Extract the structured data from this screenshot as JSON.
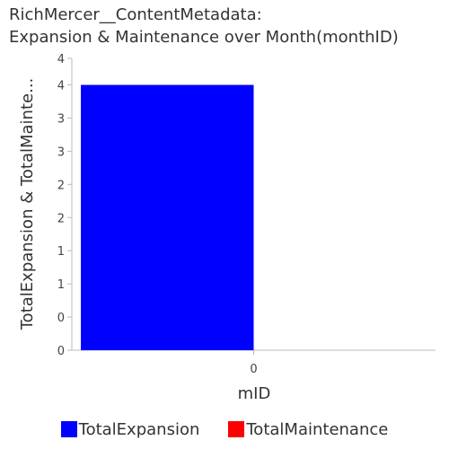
{
  "chart_data": {
    "type": "bar",
    "title_line1": "RichMercer__ContentMetadata:",
    "title_line2": "Expansion & Maintenance over Month(monthID)",
    "xlabel": "mID",
    "ylabel": "TotalExpansion & TotalMainte...",
    "categories": [
      "0"
    ],
    "series": [
      {
        "name": "TotalExpansion",
        "values": [
          4
        ],
        "color": "#0000ff"
      },
      {
        "name": "TotalMaintenance",
        "values": [
          0
        ],
        "color": "#ff0000"
      }
    ],
    "ylim": [
      0,
      4.4
    ],
    "ytick_values": [
      0,
      0.5,
      1,
      1.5,
      2,
      2.5,
      3,
      3.5,
      4,
      4.4
    ],
    "ytick_labels": [
      "0",
      "0",
      "1",
      "1",
      "2",
      "2",
      "3",
      "3",
      "4",
      "4"
    ],
    "grid": false,
    "legend_position": "bottom"
  }
}
